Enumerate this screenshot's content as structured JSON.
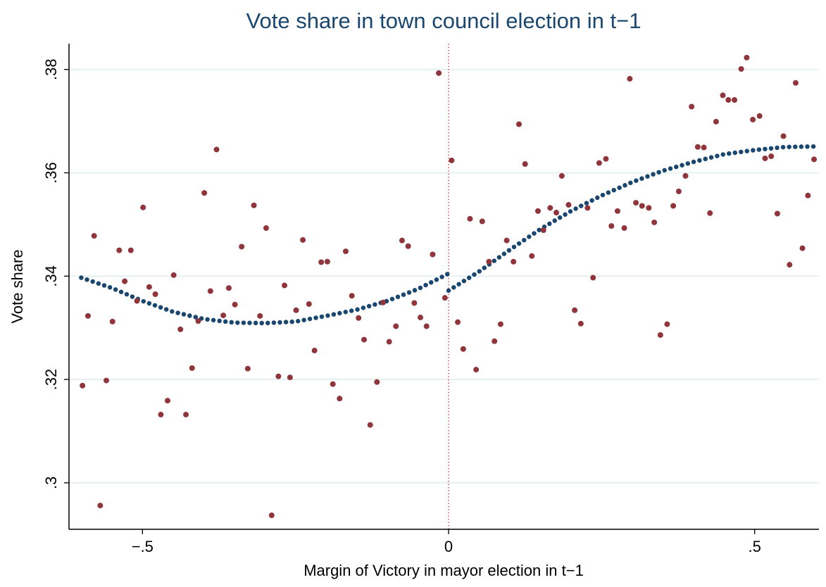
{
  "chart_data": {
    "type": "scatter",
    "title": "Vote share in town council election in t−1",
    "x_label": "Margin of Victory in mayor election in t−1",
    "y_label": "Vote share",
    "xlim": [
      -0.62,
      0.605
    ],
    "ylim": [
      0.291,
      0.385
    ],
    "xticks": [
      {
        "value": -0.5,
        "label": "−.5"
      },
      0,
      {
        "value": 0.5,
        "label": ".5"
      }
    ],
    "yticks": [
      {
        "value": 0.3,
        "label": ".3"
      },
      {
        "value": 0.32,
        "label": ".32"
      },
      {
        "value": 0.34,
        "label": ".34"
      },
      {
        "value": 0.36,
        "label": ".36"
      },
      {
        "value": 0.38,
        "label": ".38"
      }
    ],
    "grid": true,
    "reference_line_x": 0,
    "reference_color": "#c0262d",
    "points": {
      "color": "#90353b",
      "x": [
        -0.598,
        -0.589,
        -0.579,
        -0.569,
        -0.559,
        -0.549,
        -0.538,
        -0.529,
        -0.519,
        -0.509,
        -0.499,
        -0.489,
        -0.479,
        -0.47,
        -0.459,
        -0.449,
        -0.438,
        -0.429,
        -0.419,
        -0.409,
        -0.399,
        -0.389,
        -0.379,
        -0.368,
        -0.359,
        -0.349,
        -0.338,
        -0.328,
        -0.318,
        -0.308,
        -0.298,
        -0.289,
        -0.278,
        -0.268,
        -0.259,
        -0.249,
        -0.238,
        -0.228,
        -0.219,
        -0.208,
        -0.198,
        -0.189,
        -0.178,
        -0.168,
        -0.158,
        -0.147,
        -0.138,
        -0.128,
        -0.117,
        -0.107,
        -0.097,
        -0.086,
        -0.076,
        -0.066,
        -0.056,
        -0.046,
        -0.036,
        -0.026,
        -0.016,
        -0.006,
        0.005,
        0.015,
        0.024,
        0.035,
        0.045,
        0.055,
        0.066,
        0.075,
        0.085,
        0.095,
        0.106,
        0.115,
        0.125,
        0.136,
        0.146,
        0.155,
        0.166,
        0.176,
        0.185,
        0.196,
        0.206,
        0.216,
        0.227,
        0.236,
        0.246,
        0.257,
        0.266,
        0.276,
        0.287,
        0.296,
        0.306,
        0.316,
        0.327,
        0.336,
        0.346,
        0.357,
        0.367,
        0.376,
        0.387,
        0.397,
        0.407,
        0.417,
        0.427,
        0.437,
        0.448,
        0.457,
        0.467,
        0.478,
        0.487,
        0.497,
        0.508,
        0.517,
        0.527,
        0.537,
        0.547,
        0.557,
        0.567,
        0.578,
        0.587,
        0.597
      ],
      "values": [
        0.3188,
        0.3323,
        0.3478,
        0.2956,
        0.3198,
        0.3312,
        0.345,
        0.339,
        0.345,
        0.3352,
        0.3533,
        0.3379,
        0.3365,
        0.3132,
        0.3159,
        0.3402,
        0.3297,
        0.3132,
        0.3222,
        0.3313,
        0.3561,
        0.3371,
        0.3645,
        0.3324,
        0.3377,
        0.3345,
        0.3457,
        0.3221,
        0.3537,
        0.3323,
        0.3493,
        0.2937,
        0.3206,
        0.3382,
        0.3204,
        0.3334,
        0.347,
        0.3346,
        0.3256,
        0.3427,
        0.3428,
        0.3191,
        0.3163,
        0.3448,
        0.3362,
        0.3319,
        0.3277,
        0.3112,
        0.3195,
        0.3349,
        0.3273,
        0.3303,
        0.3469,
        0.3458,
        0.3348,
        0.332,
        0.3303,
        0.3442,
        0.3793,
        0.3358,
        0.3624,
        0.3311,
        0.3259,
        0.3511,
        0.3219,
        0.3506,
        0.3428,
        0.3274,
        0.3307,
        0.3469,
        0.3428,
        0.3694,
        0.3617,
        0.3439,
        0.3526,
        0.3489,
        0.3532,
        0.3523,
        0.3594,
        0.3538,
        0.3334,
        0.3308,
        0.3532,
        0.3397,
        0.3619,
        0.3627,
        0.3497,
        0.3526,
        0.3493,
        0.3782,
        0.3542,
        0.3536,
        0.3532,
        0.3504,
        0.3286,
        0.3307,
        0.3536,
        0.3564,
        0.3594,
        0.3728,
        0.365,
        0.3649,
        0.3522,
        0.3699,
        0.375,
        0.3741,
        0.3741,
        0.3801,
        0.3823,
        0.3703,
        0.371,
        0.3628,
        0.3632,
        0.3521,
        0.3671,
        0.3422,
        0.3774,
        0.3454,
        0.3556,
        0.3626
      ]
    },
    "fit": {
      "color": "#1a476f",
      "x": [
        -0.6,
        -0.55,
        -0.5,
        -0.45,
        -0.4,
        -0.35,
        -0.3,
        -0.25,
        -0.2,
        -0.15,
        -0.1,
        -0.05,
        0,
        null,
        0,
        0.05,
        0.1,
        0.15,
        0.2,
        0.25,
        0.3,
        0.35,
        0.4,
        0.45,
        0.5,
        0.55,
        0.6
      ],
      "values": [
        0.3397,
        0.3377,
        0.3352,
        0.3331,
        0.3317,
        0.331,
        0.3309,
        0.3312,
        0.3323,
        0.3335,
        0.3352,
        0.3375,
        0.3405,
        null,
        0.3372,
        0.3409,
        0.3451,
        0.3491,
        0.3526,
        0.3556,
        0.3582,
        0.3604,
        0.3621,
        0.3636,
        0.3644,
        0.365,
        0.3651
      ]
    }
  }
}
